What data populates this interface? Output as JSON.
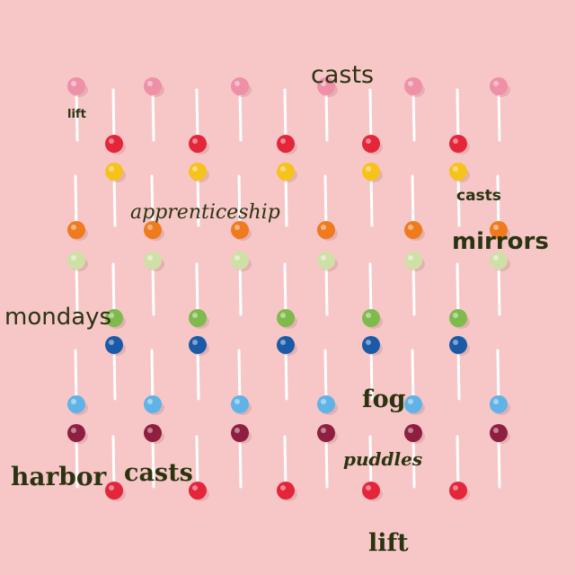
{
  "words": {
    "casts_top": "casts",
    "lift_small": "lift",
    "apprenticeship": "apprenticeship",
    "casts_right": "casts",
    "mirrors": "mirrors",
    "mondays": "mondays",
    "fog": "fog",
    "puddles": "puddles",
    "harbor": "harbor",
    "casts_mid": "casts",
    "lift_bottom": "lift"
  },
  "colors": {
    "background": "#f7c7c8",
    "text": "#2b3410",
    "stick": "#ffffff",
    "pink": "#ef8fa8",
    "red": "#e3263a",
    "yellow": "#f6c21c",
    "orange": "#f07a1e",
    "pale_green": "#cfe0a6",
    "green": "#7fba4d",
    "navy": "#1a5aa7",
    "sky_blue": "#5fb3e6",
    "maroon": "#8e1f40"
  }
}
